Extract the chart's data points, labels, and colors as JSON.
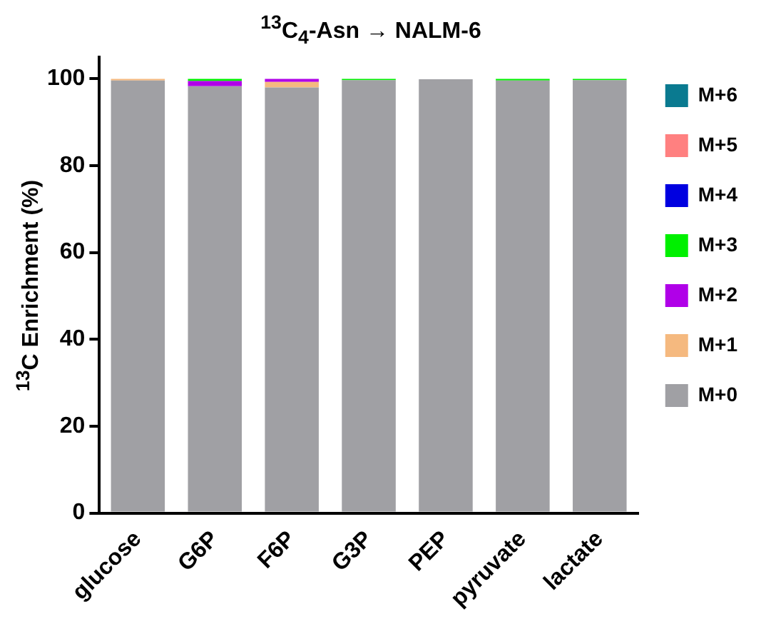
{
  "chart_data": {
    "type": "bar",
    "title": "$^{13}$C$_{4}$-Asn → NALM-6",
    "ylabel": "$^{13}$C Enrichment (%)",
    "stacked": true,
    "legend": "right",
    "grid": false,
    "categories": [
      "glucose",
      "G6P",
      "F6P",
      "G3P",
      "PEP",
      "pyruvate",
      "lactate"
    ],
    "ylim": [
      0,
      105
    ],
    "yticks": [
      0,
      20,
      40,
      60,
      80,
      100
    ],
    "series": [
      {
        "name": "M+0",
        "color": "#a0a0a4",
        "values": [
          99.6,
          98.3,
          98,
          99.7,
          99.9,
          99.6,
          99.7
        ]
      },
      {
        "name": "M+1",
        "color": "#f5b97f",
        "values": [
          0.4,
          0,
          1.3,
          0,
          0,
          0,
          0
        ]
      },
      {
        "name": "M+2",
        "color": "#b000e8",
        "values": [
          0,
          1.2,
          0.7,
          0,
          0,
          0,
          0
        ]
      },
      {
        "name": "M+3",
        "color": "#00f000",
        "values": [
          0,
          0.5,
          0,
          0.3,
          0,
          0.4,
          0.3
        ]
      },
      {
        "name": "M+4",
        "color": "#0000e0",
        "values": [
          0,
          0,
          0,
          0,
          0,
          0,
          0
        ]
      },
      {
        "name": "M+5",
        "color": "#ff8080",
        "values": [
          0,
          0,
          0,
          0,
          0,
          0,
          0
        ]
      },
      {
        "name": "M+6",
        "color": "#0a7a90",
        "values": [
          0,
          0,
          0,
          0,
          0,
          0,
          0
        ]
      }
    ]
  }
}
